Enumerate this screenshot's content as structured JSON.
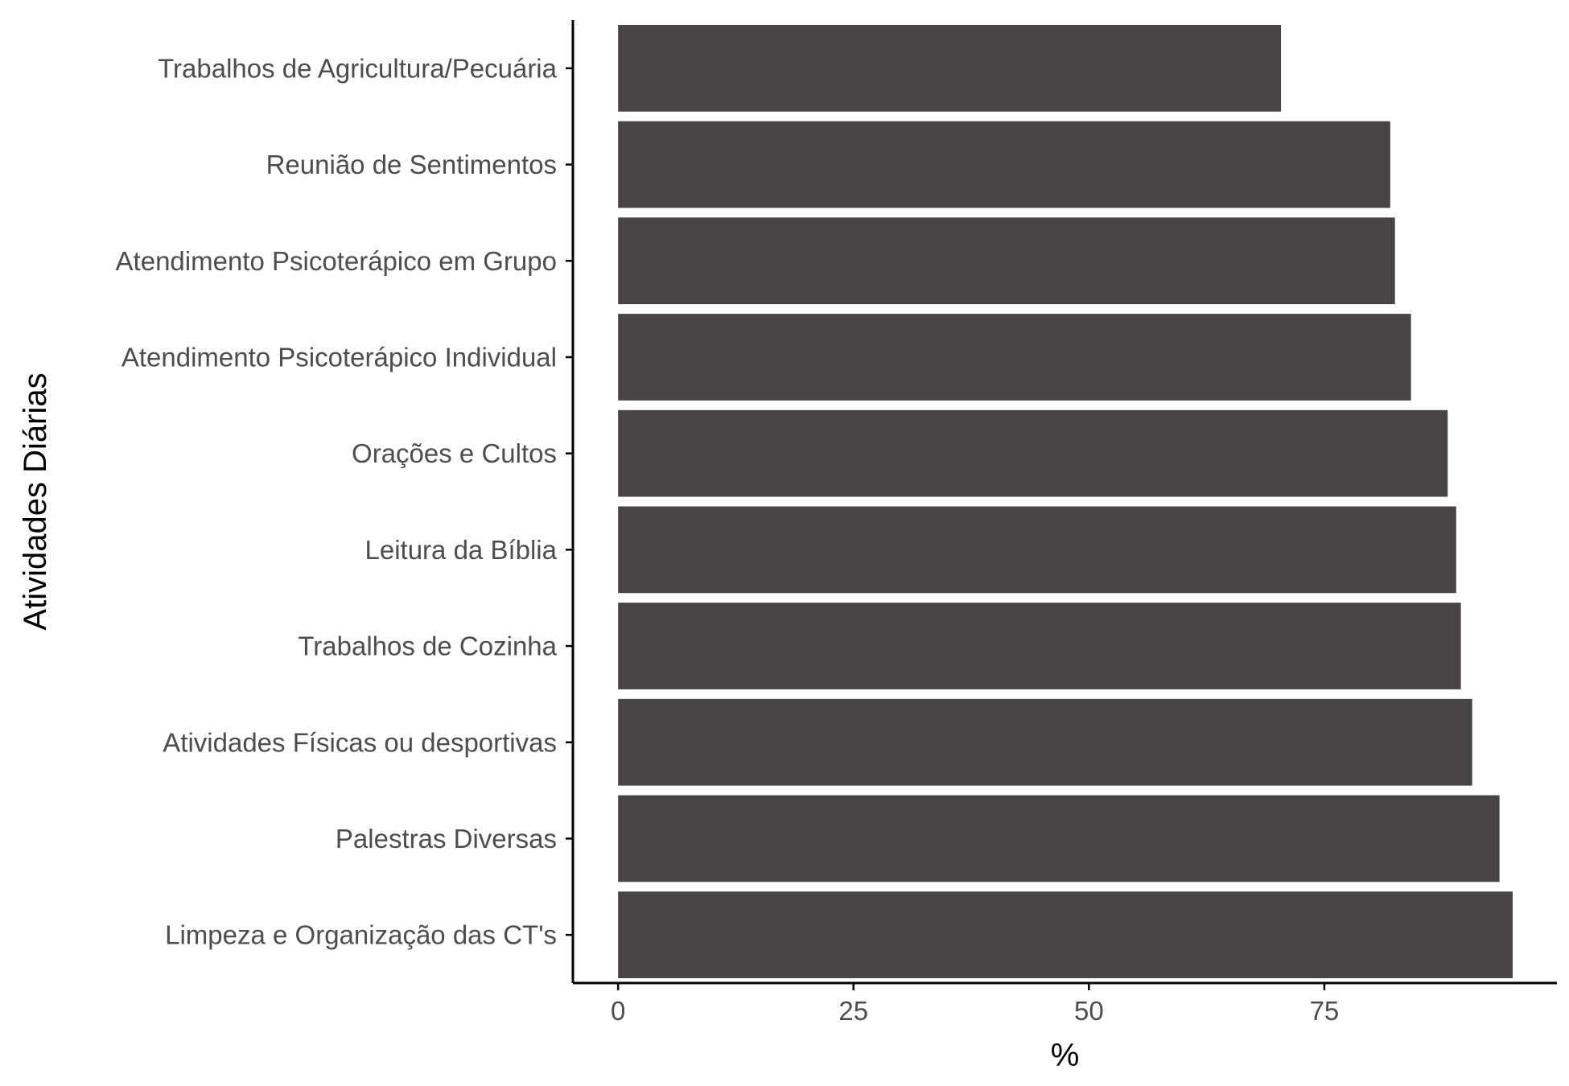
{
  "chart_data": {
    "type": "bar",
    "orientation": "horizontal",
    "categories": [
      "Trabalhos de Agricultura/Pecuária",
      "Reunião de Sentimentos",
      "Atendimento Psicoterápico em Grupo",
      "Atendimento Psicoterápico Individual",
      "Orações e Cultos",
      "Leitura da Bíblia",
      "Trabalhos de Cozinha",
      "Atividades Físicas ou desportivas",
      "Palestras Diversas",
      "Limpeza e Organização das CT's"
    ],
    "values": [
      70.4,
      82.0,
      82.5,
      84.2,
      88.1,
      89.0,
      89.5,
      90.7,
      93.6,
      95.0
    ],
    "xlabel": "%",
    "ylabel": "Atividades Diárias",
    "xticks": [
      0,
      25,
      50,
      75
    ],
    "xlim": [
      -4.8,
      99.7
    ],
    "grid": false,
    "colors": {
      "bar": "#474445",
      "axis": "#000000",
      "tick_text": "#4d4d4d"
    }
  }
}
